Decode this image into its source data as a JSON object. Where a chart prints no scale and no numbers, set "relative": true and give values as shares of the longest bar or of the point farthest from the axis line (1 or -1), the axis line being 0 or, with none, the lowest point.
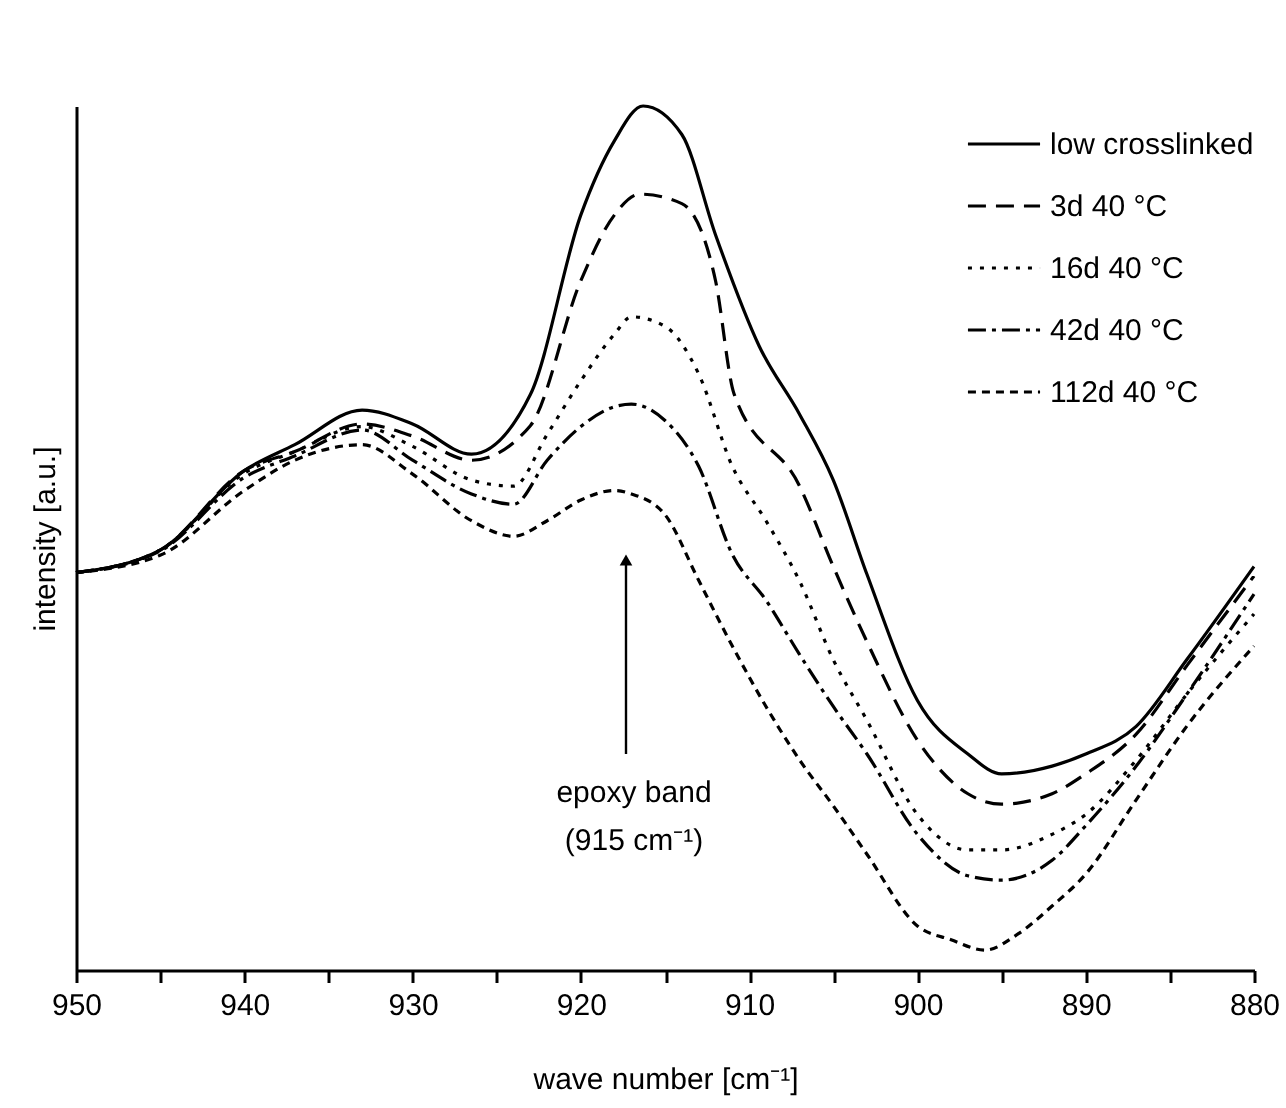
{
  "chart_data": {
    "type": "line",
    "relative": true,
    "xlabel": "wave number [cm⁻¹]",
    "ylabel": "intensity [a.u.]",
    "xlim": [
      950,
      880
    ],
    "xticks": [
      950,
      {
        "value": 945,
        "label": null
      },
      940,
      {
        "value": 935,
        "label": null
      },
      930,
      {
        "value": 925,
        "label": null
      },
      920,
      {
        "value": 915,
        "label": null
      },
      910,
      {
        "value": 905,
        "label": null
      },
      900,
      {
        "value": 895,
        "label": null
      },
      890,
      {
        "value": 885,
        "label": null
      },
      880
    ],
    "legend": "top right",
    "grid": false,
    "marker": "none",
    "annotations": [
      "epoxy band (915 cm⁻¹)"
    ],
    "series": [
      {
        "name": "low crosslinked",
        "color": "#000000",
        "line_style": "solid",
        "x": [
          950,
          945,
          940,
          937,
          933,
          930,
          926.5,
          923,
          920,
          918,
          916.3,
          914,
          912,
          909.4,
          907,
          905,
          903,
          900,
          897,
          895,
          892,
          890,
          887,
          884,
          880
        ],
        "values": [
          0.46,
          0.486,
          0.578,
          0.608,
          0.648,
          0.632,
          0.597,
          0.666,
          0.874,
          0.96,
          1.0,
          0.967,
          0.851,
          0.722,
          0.643,
          0.567,
          0.458,
          0.312,
          0.25,
          0.227,
          0.236,
          0.25,
          0.282,
          0.359,
          0.467
        ]
      },
      {
        "name": "3d 40 °C",
        "color": "#000000",
        "line_style": "dashed",
        "x": [
          950,
          945,
          940,
          937,
          933,
          930,
          926.5,
          923,
          920,
          918,
          916.5,
          914,
          912,
          910.9,
          907,
          905,
          903,
          900,
          897,
          895,
          892,
          890,
          887,
          884,
          880
        ],
        "values": [
          0.46,
          0.486,
          0.578,
          0.6,
          0.632,
          0.618,
          0.59,
          0.63,
          0.798,
          0.874,
          0.898,
          0.887,
          0.798,
          0.667,
          0.56,
          0.467,
          0.38,
          0.266,
          0.204,
          0.192,
          0.204,
          0.227,
          0.273,
          0.352,
          0.456
        ]
      },
      {
        "name": "16d 40 °C",
        "color": "#000000",
        "line_style": "dotted",
        "x": [
          950,
          945,
          940,
          937,
          933,
          930,
          926.5,
          924,
          922,
          920,
          918,
          917,
          915,
          913,
          911,
          909,
          907,
          905,
          903,
          900,
          897,
          895,
          892,
          890,
          887,
          884,
          880
        ],
        "values": [
          0.46,
          0.486,
          0.575,
          0.6,
          0.629,
          0.606,
          0.567,
          0.56,
          0.62,
          0.682,
          0.736,
          0.756,
          0.745,
          0.69,
          0.583,
          0.52,
          0.45,
          0.359,
          0.289,
          0.18,
          0.139,
          0.139,
          0.157,
          0.18,
          0.243,
          0.319,
          0.412
        ]
      },
      {
        "name": "42d 40 °C",
        "color": "#000000",
        "line_style": "dashdot",
        "x": [
          950,
          945,
          940,
          937,
          933,
          930,
          926.5,
          924,
          922,
          920,
          918,
          917,
          915,
          913,
          911,
          909,
          907,
          905,
          903,
          900,
          897,
          895,
          892,
          890,
          887,
          884,
          880
        ],
        "values": [
          0.46,
          0.485,
          0.57,
          0.595,
          0.625,
          0.59,
          0.551,
          0.539,
          0.59,
          0.629,
          0.652,
          0.655,
          0.636,
          0.583,
          0.481,
          0.428,
          0.365,
          0.305,
          0.25,
          0.157,
          0.109,
          0.104,
          0.127,
          0.167,
          0.236,
          0.319,
          0.435
        ]
      },
      {
        "name": "112d 40 °C",
        "color": "#000000",
        "line_style": "shortdash",
        "x": [
          950,
          945,
          940,
          937,
          933,
          930,
          926.5,
          924,
          922,
          920,
          918,
          917,
          915,
          913,
          911,
          909,
          907,
          905,
          903,
          900,
          898,
          896,
          894,
          892,
          890,
          887,
          884,
          880
        ],
        "values": [
          0.46,
          0.48,
          0.555,
          0.59,
          0.608,
          0.574,
          0.52,
          0.502,
          0.52,
          0.544,
          0.555,
          0.551,
          0.527,
          0.451,
          0.375,
          0.305,
          0.243,
          0.19,
          0.134,
          0.051,
          0.035,
          0.023,
          0.042,
          0.074,
          0.111,
          0.197,
          0.282,
          0.375
        ]
      }
    ]
  }
}
